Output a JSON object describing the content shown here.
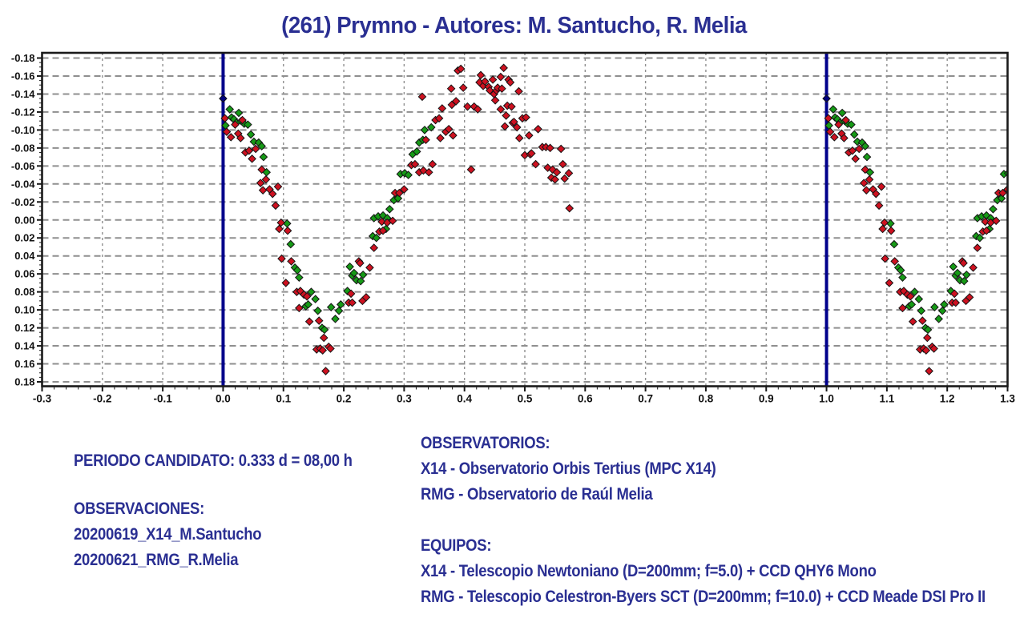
{
  "title": "(261) Prymno - Autores: M. Santucho, R. Melia",
  "colors": {
    "title_text": "#2a2f92",
    "footer_text": "#2a2f92",
    "series_green": "#169a16",
    "series_red": "#ce1120",
    "phase_boundary_line": "#00008b",
    "phase_marker": "#000080",
    "grid": "#8f8f8f",
    "axis_frame": "#1a1a1a",
    "tick_label": "#111111"
  },
  "chart_data": {
    "type": "scatter",
    "title": "(261) Prymno - Autores: M. Santucho, R. Melia",
    "xlabel": "",
    "ylabel": "",
    "x_range": [
      -0.3,
      1.3
    ],
    "x_tick_step": 0.1,
    "x_minor_tick_step": 0.02,
    "y_range": [
      -0.18,
      0.18
    ],
    "y_tick_step": 0.02,
    "y_minor_tick_step": 0.005,
    "y_axis_inverted_magnitude": true,
    "grid": "dashed",
    "legend": "none",
    "x_tick_labels": [
      "-0.3",
      "-0.2",
      "-0.1",
      "0.0",
      "0.1",
      "0.2",
      "0.3",
      "0.4",
      "0.5",
      "0.6",
      "0.7",
      "0.8",
      "0.9",
      "1.0",
      "1.1",
      "1.2",
      "1.3"
    ],
    "y_tick_labels": [
      "-0.18",
      "-0.16",
      "-0.14",
      "-0.12",
      "-0.10",
      "-0.08",
      "-0.06",
      "-0.04",
      "-0.02",
      "0.00",
      "0.02",
      "0.04",
      "0.06",
      "0.08",
      "0.10",
      "0.12",
      "0.14",
      "0.16",
      "0.18"
    ],
    "phase_boundary_lines": [
      0.0,
      1.0
    ],
    "wrap_offset": 1.0,
    "wrap_max_phase": 0.32,
    "series": [
      {
        "name": "session-green-X14",
        "color": "#169a16",
        "points": [
          [
            0.004,
            -0.105
          ],
          [
            0.011,
            -0.123
          ],
          [
            0.014,
            -0.114
          ],
          [
            0.018,
            -0.112
          ],
          [
            0.022,
            -0.108
          ],
          [
            0.026,
            -0.119
          ],
          [
            0.03,
            -0.11
          ],
          [
            0.035,
            -0.107
          ],
          [
            0.041,
            -0.106
          ],
          [
            0.046,
            -0.095
          ],
          [
            0.051,
            -0.087
          ],
          [
            0.059,
            -0.086
          ],
          [
            0.064,
            -0.082
          ],
          [
            0.067,
            -0.07
          ],
          [
            0.072,
            -0.053
          ],
          [
            0.106,
            0.004
          ],
          [
            0.112,
            0.027
          ],
          [
            0.119,
            0.053
          ],
          [
            0.123,
            0.056
          ],
          [
            0.126,
            0.064
          ],
          [
            0.137,
            0.096
          ],
          [
            0.141,
            0.094
          ],
          [
            0.146,
            0.08
          ],
          [
            0.153,
            0.088
          ],
          [
            0.157,
            0.101
          ],
          [
            0.164,
            0.12
          ],
          [
            0.168,
            0.122
          ],
          [
            0.179,
            0.097
          ],
          [
            0.186,
            0.11
          ],
          [
            0.192,
            0.101
          ],
          [
            0.195,
            0.094
          ],
          [
            0.206,
            0.079
          ],
          [
            0.21,
            0.052
          ],
          [
            0.214,
            0.062
          ],
          [
            0.217,
            0.059
          ],
          [
            0.221,
            0.067
          ],
          [
            0.228,
            0.068
          ],
          [
            0.232,
            0.061
          ],
          [
            0.248,
            0.018
          ],
          [
            0.25,
            -0.002
          ],
          [
            0.254,
            0.02
          ],
          [
            0.257,
            -0.004
          ],
          [
            0.265,
            -0.005
          ],
          [
            0.27,
            0.01
          ],
          [
            0.272,
            -0.002
          ],
          [
            0.276,
            -0.012
          ],
          [
            0.283,
            -0.022
          ],
          [
            0.29,
            -0.024
          ],
          [
            0.294,
            -0.051
          ],
          [
            0.301,
            -0.052
          ],
          [
            0.307,
            -0.05
          ],
          [
            0.314,
            -0.073
          ],
          [
            0.321,
            -0.076
          ],
          [
            0.325,
            -0.086
          ],
          [
            0.331,
            -0.089
          ],
          [
            0.334,
            -0.1
          ],
          [
            0.345,
            -0.103
          ]
        ]
      },
      {
        "name": "session-red-RMG",
        "color": "#ce1120",
        "points": [
          [
            0.003,
            -0.113
          ],
          [
            0.006,
            -0.098
          ],
          [
            0.013,
            -0.092
          ],
          [
            0.02,
            -0.106
          ],
          [
            0.025,
            -0.096
          ],
          [
            0.029,
            -0.091
          ],
          [
            0.032,
            -0.111
          ],
          [
            0.037,
            -0.075
          ],
          [
            0.043,
            -0.077
          ],
          [
            0.048,
            -0.068
          ],
          [
            0.054,
            -0.079
          ],
          [
            0.062,
            -0.041
          ],
          [
            0.064,
            -0.056
          ],
          [
            0.066,
            -0.033
          ],
          [
            0.071,
            -0.045
          ],
          [
            0.077,
            -0.034
          ],
          [
            0.082,
            -0.029
          ],
          [
            0.087,
            -0.016
          ],
          [
            0.091,
            -0.037
          ],
          [
            0.093,
            0.01
          ],
          [
            0.096,
            0.003
          ],
          [
            0.097,
            0.043
          ],
          [
            0.104,
            0.07
          ],
          [
            0.107,
            0.012
          ],
          [
            0.113,
            0.046
          ],
          [
            0.122,
            0.08
          ],
          [
            0.126,
            0.098
          ],
          [
            0.128,
            0.079
          ],
          [
            0.134,
            0.083
          ],
          [
            0.139,
            0.085
          ],
          [
            0.143,
            0.113
          ],
          [
            0.155,
            0.144
          ],
          [
            0.159,
            0.112
          ],
          [
            0.161,
            0.143
          ],
          [
            0.165,
            0.145
          ],
          [
            0.167,
            0.131
          ],
          [
            0.17,
            0.168
          ],
          [
            0.175,
            0.141
          ],
          [
            0.178,
            0.143
          ],
          [
            0.208,
            0.092
          ],
          [
            0.212,
            0.082
          ],
          [
            0.214,
            0.092
          ],
          [
            0.225,
            0.046
          ],
          [
            0.227,
            0.048
          ],
          [
            0.231,
            0.09
          ],
          [
            0.237,
            0.086
          ],
          [
            0.243,
            0.053
          ],
          [
            0.25,
            0.031
          ],
          [
            0.259,
            0.013
          ],
          [
            0.263,
            0.002
          ],
          [
            0.265,
            0.012
          ],
          [
            0.272,
            0.003
          ],
          [
            0.281,
            0.001
          ],
          [
            0.285,
            -0.03
          ],
          [
            0.292,
            -0.03
          ],
          [
            0.3,
            -0.034
          ],
          [
            0.312,
            -0.061
          ],
          [
            0.318,
            -0.062
          ],
          [
            0.325,
            -0.053
          ],
          [
            0.33,
            -0.137
          ],
          [
            0.332,
            -0.055
          ],
          [
            0.336,
            -0.089
          ],
          [
            0.341,
            -0.053
          ],
          [
            0.347,
            -0.062
          ],
          [
            0.352,
            -0.111
          ],
          [
            0.358,
            -0.113
          ],
          [
            0.36,
            -0.091
          ],
          [
            0.363,
            -0.124
          ],
          [
            0.369,
            -0.098
          ],
          [
            0.374,
            -0.101
          ],
          [
            0.378,
            -0.146
          ],
          [
            0.379,
            -0.128
          ],
          [
            0.381,
            -0.094
          ],
          [
            0.386,
            -0.132
          ],
          [
            0.389,
            -0.166
          ],
          [
            0.394,
            -0.168
          ],
          [
            0.398,
            -0.147
          ],
          [
            0.405,
            -0.126
          ],
          [
            0.411,
            -0.056
          ],
          [
            0.416,
            -0.126
          ],
          [
            0.422,
            -0.123
          ],
          [
            0.425,
            -0.153
          ],
          [
            0.427,
            -0.161
          ],
          [
            0.431,
            -0.149
          ],
          [
            0.434,
            -0.154
          ],
          [
            0.44,
            -0.148
          ],
          [
            0.442,
            -0.144
          ],
          [
            0.447,
            -0.156
          ],
          [
            0.449,
            -0.14
          ],
          [
            0.451,
            -0.133
          ],
          [
            0.453,
            -0.144
          ],
          [
            0.455,
            -0.147
          ],
          [
            0.46,
            -0.159
          ],
          [
            0.46,
            -0.123
          ],
          [
            0.462,
            -0.146
          ],
          [
            0.465,
            -0.169
          ],
          [
            0.467,
            -0.104
          ],
          [
            0.469,
            -0.116
          ],
          [
            0.471,
            -0.127
          ],
          [
            0.473,
            -0.156
          ],
          [
            0.476,
            -0.153
          ],
          [
            0.478,
            -0.126
          ],
          [
            0.48,
            -0.108
          ],
          [
            0.482,
            -0.109
          ],
          [
            0.487,
            -0.103
          ],
          [
            0.49,
            -0.143
          ],
          [
            0.491,
            -0.091
          ],
          [
            0.496,
            -0.113
          ],
          [
            0.5,
            -0.072
          ],
          [
            0.502,
            -0.114
          ],
          [
            0.507,
            -0.094
          ],
          [
            0.509,
            -0.073
          ],
          [
            0.511,
            -0.074
          ],
          [
            0.518,
            -0.062
          ],
          [
            0.522,
            -0.101
          ],
          [
            0.529,
            -0.081
          ],
          [
            0.535,
            -0.081
          ],
          [
            0.538,
            -0.058
          ],
          [
            0.542,
            -0.08
          ],
          [
            0.544,
            -0.047
          ],
          [
            0.546,
            -0.056
          ],
          [
            0.55,
            -0.045
          ],
          [
            0.553,
            -0.053
          ],
          [
            0.56,
            -0.079
          ],
          [
            0.563,
            -0.062
          ],
          [
            0.566,
            -0.046
          ],
          [
            0.573,
            -0.052
          ],
          [
            0.574,
            -0.013
          ]
        ]
      },
      {
        "name": "phase-line-marker",
        "color": "#000080",
        "points": [
          [
            0.0,
            -0.135
          ]
        ]
      }
    ]
  },
  "footer": {
    "left": {
      "periodo": "PERIODO CANDIDATO: 0.333 d = 08,00 h",
      "observaciones_title": "OBSERVACIONES:",
      "observaciones": [
        "20200619_X14_M.Santucho",
        "20200621_RMG_R.Melia"
      ]
    },
    "right": {
      "observatorios_title": "OBSERVATORIOS:",
      "observatorios": [
        "X14 - Observatorio Orbis Tertius (MPC X14)",
        "RMG - Observatorio de Raúl Melia"
      ],
      "equipos_title": "EQUIPOS:",
      "equipos": [
        "X14 - Telescopio Newtoniano (D=200mm; f=5.0) + CCD QHY6 Mono",
        "RMG - Telescopio Celestron-Byers SCT (D=200mm; f=10.0) + CCD Meade DSI Pro II"
      ]
    }
  }
}
